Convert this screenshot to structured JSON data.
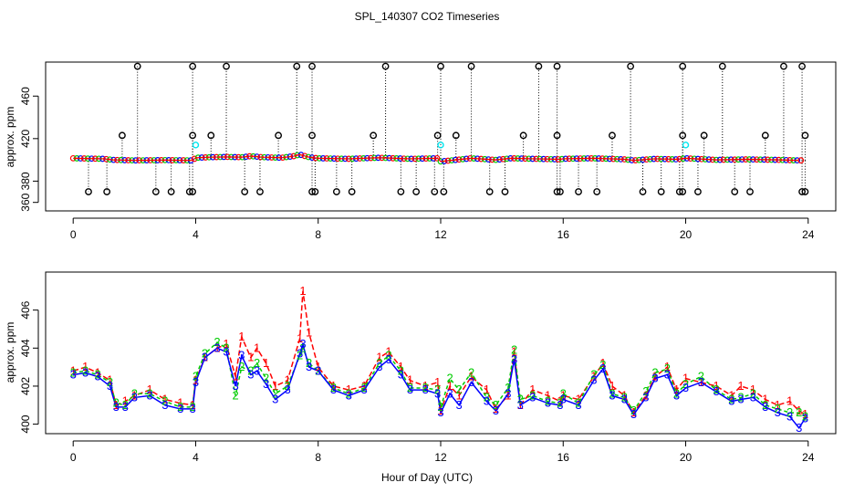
{
  "chart_data": [
    {
      "type": "scatter",
      "title": "SPL_140307  CO2 Timeseries",
      "xlabel": "",
      "ylabel": "approx. ppm",
      "xlim": [
        -0.9,
        24.9
      ],
      "ylim": [
        352,
        492
      ],
      "xticks": [
        0,
        4,
        8,
        12,
        16,
        20,
        24
      ],
      "yticks": [
        360,
        380,
        420,
        460
      ],
      "colors": {
        "outlier": "#000000",
        "series1": "#ff0000",
        "series2": "#00cc00",
        "series3": "#0000ff",
        "flag": "#00e5ee"
      },
      "baseline": [
        [
          0.0,
          401.5
        ],
        [
          1.0,
          401.0
        ],
        [
          1.3,
          400.0
        ],
        [
          2.0,
          399.5
        ],
        [
          3.0,
          399.8
        ],
        [
          3.9,
          399.5
        ],
        [
          4.0,
          402.0
        ],
        [
          4.5,
          402.5
        ],
        [
          5.0,
          402.8
        ],
        [
          5.5,
          402.5
        ],
        [
          5.8,
          403.5
        ],
        [
          6.2,
          402.5
        ],
        [
          6.8,
          402.0
        ],
        [
          7.2,
          403.5
        ],
        [
          7.4,
          405.0
        ],
        [
          7.7,
          402.5
        ],
        [
          8.0,
          401.5
        ],
        [
          9.0,
          401.0
        ],
        [
          10.0,
          402.0
        ],
        [
          10.5,
          401.5
        ],
        [
          11.0,
          401.0
        ],
        [
          11.9,
          401.5
        ],
        [
          12.0,
          398.5
        ],
        [
          12.5,
          400.0
        ],
        [
          13.0,
          401.5
        ],
        [
          13.8,
          400.0
        ],
        [
          14.3,
          401.5
        ],
        [
          15.0,
          401.0
        ],
        [
          15.9,
          400.5
        ],
        [
          16.0,
          401.0
        ],
        [
          17.0,
          401.5
        ],
        [
          18.0,
          400.5
        ],
        [
          18.3,
          399.5
        ],
        [
          19.0,
          401.0
        ],
        [
          19.7,
          400.5
        ],
        [
          20.0,
          401.5
        ],
        [
          21.0,
          400.0
        ],
        [
          22.0,
          400.5
        ],
        [
          23.0,
          400.0
        ],
        [
          23.7,
          399.5
        ]
      ],
      "outliers_high": [
        2.1,
        3.9,
        5.0,
        7.3,
        7.8,
        10.2,
        12.0,
        13.0,
        15.2,
        15.8,
        18.2,
        19.9,
        21.2,
        23.2,
        23.8
      ],
      "outliers_mid": [
        1.6,
        3.9,
        4.5,
        6.7,
        7.8,
        9.8,
        11.9,
        12.5,
        14.7,
        15.8,
        17.6,
        19.9,
        20.6,
        22.6,
        23.9
      ],
      "outliers_low": [
        0.5,
        1.1,
        2.7,
        3.2,
        3.8,
        3.9,
        5.6,
        6.1,
        7.8,
        7.9,
        8.6,
        9.1,
        10.7,
        11.2,
        11.8,
        12.1,
        13.6,
        14.1,
        15.8,
        15.9,
        16.5,
        17.1,
        18.6,
        19.2,
        19.8,
        19.9,
        20.4,
        21.6,
        22.1,
        23.8,
        23.9
      ],
      "flag_points": [
        [
          4.0,
          414
        ],
        [
          12.0,
          414
        ],
        [
          20.0,
          414
        ]
      ],
      "values_high": 488,
      "values_mid": 423,
      "values_low": 370
    },
    {
      "type": "line",
      "title": "",
      "xlabel": "Hour of Day (UTC)",
      "ylabel": "approx. ppm",
      "xlim": [
        -0.9,
        24.9
      ],
      "ylim": [
        399.5,
        408.0
      ],
      "xticks": [
        0,
        4,
        8,
        12,
        16,
        20,
        24
      ],
      "yticks": [
        400,
        402,
        404,
        406
      ],
      "series": [
        {
          "name": "1",
          "color": "#ff0000",
          "label": "1",
          "points": [
            [
              0.0,
              402.8
            ],
            [
              0.4,
              403.0
            ],
            [
              0.8,
              402.7
            ],
            [
              1.2,
              402.3
            ],
            [
              1.4,
              401.0
            ],
            [
              1.7,
              401.2
            ],
            [
              2.0,
              401.5
            ],
            [
              2.5,
              401.8
            ],
            [
              3.0,
              401.3
            ],
            [
              3.5,
              401.1
            ],
            [
              3.9,
              401.0
            ],
            [
              4.0,
              402.3
            ],
            [
              4.3,
              403.5
            ],
            [
              4.7,
              404.0
            ],
            [
              5.0,
              404.2
            ],
            [
              5.3,
              402.5
            ],
            [
              5.5,
              404.6
            ],
            [
              5.8,
              403.5
            ],
            [
              6.0,
              404.0
            ],
            [
              6.3,
              403.2
            ],
            [
              6.6,
              402.0
            ],
            [
              7.0,
              402.3
            ],
            [
              7.4,
              404.5
            ],
            [
              7.5,
              407.0
            ],
            [
              7.7,
              404.8
            ],
            [
              8.0,
              403.0
            ],
            [
              8.5,
              402.0
            ],
            [
              9.0,
              401.8
            ],
            [
              9.5,
              402.0
            ],
            [
              10.0,
              403.5
            ],
            [
              10.3,
              403.8
            ],
            [
              10.7,
              403.0
            ],
            [
              11.0,
              402.3
            ],
            [
              11.5,
              402.0
            ],
            [
              11.9,
              402.2
            ],
            [
              12.0,
              400.7
            ],
            [
              12.3,
              402.0
            ],
            [
              12.6,
              401.5
            ],
            [
              13.0,
              402.5
            ],
            [
              13.5,
              401.8
            ],
            [
              13.8,
              400.8
            ],
            [
              14.2,
              401.5
            ],
            [
              14.4,
              403.8
            ],
            [
              14.6,
              401.0
            ],
            [
              15.0,
              401.8
            ],
            [
              15.5,
              401.5
            ],
            [
              15.9,
              401.2
            ],
            [
              16.0,
              401.5
            ],
            [
              16.5,
              401.3
            ],
            [
              17.0,
              402.5
            ],
            [
              17.3,
              403.2
            ],
            [
              17.6,
              402.0
            ],
            [
              18.0,
              401.5
            ],
            [
              18.3,
              400.6
            ],
            [
              18.7,
              401.5
            ],
            [
              19.0,
              402.5
            ],
            [
              19.4,
              403.0
            ],
            [
              19.7,
              401.8
            ],
            [
              20.0,
              402.4
            ],
            [
              20.5,
              402.2
            ],
            [
              21.0,
              402.0
            ],
            [
              21.5,
              401.5
            ],
            [
              21.8,
              402.0
            ],
            [
              22.2,
              401.8
            ],
            [
              22.6,
              401.3
            ],
            [
              23.0,
              401.0
            ],
            [
              23.4,
              401.2
            ],
            [
              23.7,
              400.7
            ],
            [
              23.9,
              400.5
            ]
          ]
        },
        {
          "name": "2",
          "color": "#00cc00",
          "label": "2",
          "points": [
            [
              0.0,
              402.7
            ],
            [
              0.4,
              402.8
            ],
            [
              0.8,
              402.6
            ],
            [
              1.2,
              402.2
            ],
            [
              1.4,
              401.1
            ],
            [
              1.7,
              401.0
            ],
            [
              2.0,
              401.6
            ],
            [
              2.5,
              401.6
            ],
            [
              3.0,
              401.2
            ],
            [
              3.5,
              400.9
            ],
            [
              3.9,
              400.9
            ],
            [
              4.0,
              402.5
            ],
            [
              4.3,
              403.7
            ],
            [
              4.7,
              404.3
            ],
            [
              5.0,
              404.0
            ],
            [
              5.3,
              401.5
            ],
            [
              5.5,
              403.0
            ],
            [
              5.8,
              402.8
            ],
            [
              6.0,
              403.2
            ],
            [
              6.3,
              402.4
            ],
            [
              6.6,
              401.6
            ],
            [
              7.0,
              402.0
            ],
            [
              7.4,
              403.6
            ],
            [
              7.5,
              404.0
            ],
            [
              7.7,
              403.2
            ],
            [
              8.0,
              402.8
            ],
            [
              8.5,
              401.9
            ],
            [
              9.0,
              401.6
            ],
            [
              9.5,
              401.9
            ],
            [
              10.0,
              403.2
            ],
            [
              10.3,
              403.6
            ],
            [
              10.7,
              402.8
            ],
            [
              11.0,
              401.9
            ],
            [
              11.5,
              401.9
            ],
            [
              11.9,
              401.8
            ],
            [
              12.0,
              400.9
            ],
            [
              12.3,
              402.4
            ],
            [
              12.6,
              401.8
            ],
            [
              13.0,
              402.7
            ],
            [
              13.5,
              401.4
            ],
            [
              13.8,
              401.0
            ],
            [
              14.2,
              401.9
            ],
            [
              14.4,
              403.9
            ],
            [
              14.6,
              401.3
            ],
            [
              15.0,
              401.5
            ],
            [
              15.5,
              401.2
            ],
            [
              15.9,
              401.1
            ],
            [
              16.0,
              401.6
            ],
            [
              16.5,
              401.1
            ],
            [
              17.0,
              402.6
            ],
            [
              17.3,
              403.1
            ],
            [
              17.6,
              401.6
            ],
            [
              18.0,
              401.4
            ],
            [
              18.3,
              400.7
            ],
            [
              18.7,
              401.7
            ],
            [
              19.0,
              402.7
            ],
            [
              19.4,
              402.9
            ],
            [
              19.7,
              401.6
            ],
            [
              20.0,
              402.1
            ],
            [
              20.5,
              402.5
            ],
            [
              21.0,
              401.8
            ],
            [
              21.5,
              401.3
            ],
            [
              21.8,
              401.4
            ],
            [
              22.2,
              401.6
            ],
            [
              22.6,
              401.0
            ],
            [
              23.0,
              400.8
            ],
            [
              23.4,
              400.6
            ],
            [
              23.7,
              400.6
            ],
            [
              23.9,
              400.4
            ]
          ]
        },
        {
          "name": "3",
          "color": "#0000ff",
          "label": "3",
          "points": [
            [
              0.0,
              402.6
            ],
            [
              0.4,
              402.7
            ],
            [
              0.8,
              402.5
            ],
            [
              1.2,
              402.0
            ],
            [
              1.4,
              400.9
            ],
            [
              1.7,
              400.9
            ],
            [
              2.0,
              401.4
            ],
            [
              2.5,
              401.5
            ],
            [
              3.0,
              401.0
            ],
            [
              3.5,
              400.8
            ],
            [
              3.9,
              400.8
            ],
            [
              4.0,
              402.2
            ],
            [
              4.3,
              403.5
            ],
            [
              4.7,
              404.0
            ],
            [
              5.0,
              403.8
            ],
            [
              5.3,
              402.0
            ],
            [
              5.5,
              403.6
            ],
            [
              5.8,
              402.6
            ],
            [
              6.0,
              402.8
            ],
            [
              6.3,
              402.1
            ],
            [
              6.6,
              401.3
            ],
            [
              7.0,
              401.8
            ],
            [
              7.4,
              403.7
            ],
            [
              7.5,
              404.2
            ],
            [
              7.7,
              403.0
            ],
            [
              8.0,
              402.8
            ],
            [
              8.5,
              401.8
            ],
            [
              9.0,
              401.5
            ],
            [
              9.5,
              401.8
            ],
            [
              10.0,
              403.0
            ],
            [
              10.3,
              403.4
            ],
            [
              10.7,
              402.6
            ],
            [
              11.0,
              401.8
            ],
            [
              11.5,
              401.8
            ],
            [
              11.9,
              401.6
            ],
            [
              12.0,
              400.6
            ],
            [
              12.3,
              401.6
            ],
            [
              12.6,
              401.0
            ],
            [
              13.0,
              402.2
            ],
            [
              13.5,
              401.2
            ],
            [
              13.8,
              400.7
            ],
            [
              14.2,
              401.6
            ],
            [
              14.4,
              403.4
            ],
            [
              14.6,
              401.0
            ],
            [
              15.0,
              401.4
            ],
            [
              15.5,
              401.1
            ],
            [
              15.9,
              401.0
            ],
            [
              16.0,
              401.3
            ],
            [
              16.5,
              401.0
            ],
            [
              17.0,
              402.3
            ],
            [
              17.3,
              402.9
            ],
            [
              17.6,
              401.5
            ],
            [
              18.0,
              401.3
            ],
            [
              18.3,
              400.5
            ],
            [
              18.7,
              401.4
            ],
            [
              19.0,
              402.4
            ],
            [
              19.4,
              402.6
            ],
            [
              19.7,
              401.5
            ],
            [
              20.0,
              401.9
            ],
            [
              20.5,
              402.2
            ],
            [
              21.0,
              401.7
            ],
            [
              21.5,
              401.2
            ],
            [
              21.8,
              401.3
            ],
            [
              22.2,
              401.4
            ],
            [
              22.6,
              400.9
            ],
            [
              23.0,
              400.6
            ],
            [
              23.4,
              400.4
            ],
            [
              23.7,
              399.8
            ],
            [
              23.9,
              400.3
            ]
          ]
        }
      ]
    }
  ]
}
